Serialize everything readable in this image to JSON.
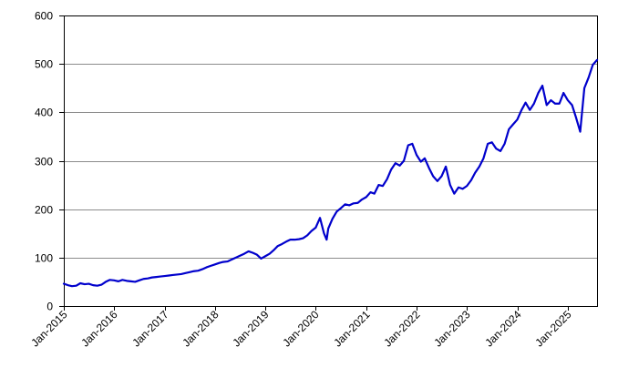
{
  "chart_data": {
    "type": "line",
    "title": "",
    "xlabel": "",
    "ylabel": "",
    "ylim": [
      0,
      600
    ],
    "xlim": [
      "2015-01-01",
      "2025-08-01"
    ],
    "y_ticks": [
      0,
      100,
      200,
      300,
      400,
      500,
      600
    ],
    "x_ticks": [
      {
        "label": "Jan-2015",
        "date": "2015-01-01"
      },
      {
        "label": "Jan-2016",
        "date": "2016-01-01"
      },
      {
        "label": "Jan-2017",
        "date": "2017-01-01"
      },
      {
        "label": "Jan-2018",
        "date": "2018-01-01"
      },
      {
        "label": "Jan-2019",
        "date": "2019-01-01"
      },
      {
        "label": "Jan-2020",
        "date": "2020-01-01"
      },
      {
        "label": "Jan-2021",
        "date": "2021-01-01"
      },
      {
        "label": "Jan-2022",
        "date": "2022-01-01"
      },
      {
        "label": "Jan-2023",
        "date": "2023-01-01"
      },
      {
        "label": "Jan-2024",
        "date": "2024-01-01"
      },
      {
        "label": "Jan-2025",
        "date": "2025-01-01"
      }
    ],
    "grid": {
      "horizontal": true,
      "vertical": false
    },
    "legend": "none",
    "series_color": "#0000cc",
    "gridline_color": "#8c8c8c",
    "series": [
      {
        "points": [
          [
            "2015-01-01",
            46
          ],
          [
            "2015-02-01",
            43
          ],
          [
            "2015-03-01",
            41
          ],
          [
            "2015-04-01",
            42
          ],
          [
            "2015-05-01",
            47
          ],
          [
            "2015-06-01",
            45
          ],
          [
            "2015-07-01",
            46
          ],
          [
            "2015-08-01",
            43
          ],
          [
            "2015-09-01",
            42
          ],
          [
            "2015-10-01",
            44
          ],
          [
            "2015-11-01",
            50
          ],
          [
            "2015-12-01",
            54
          ],
          [
            "2016-01-01",
            53
          ],
          [
            "2016-02-01",
            51
          ],
          [
            "2016-03-01",
            54
          ],
          [
            "2016-04-01",
            52
          ],
          [
            "2016-05-01",
            51
          ],
          [
            "2016-06-01",
            50
          ],
          [
            "2016-07-01",
            53
          ],
          [
            "2016-08-01",
            56
          ],
          [
            "2016-09-01",
            57
          ],
          [
            "2016-10-01",
            59
          ],
          [
            "2016-11-01",
            60
          ],
          [
            "2016-12-01",
            61
          ],
          [
            "2017-01-01",
            62
          ],
          [
            "2017-02-01",
            63
          ],
          [
            "2017-03-01",
            64
          ],
          [
            "2017-04-01",
            65
          ],
          [
            "2017-05-01",
            66
          ],
          [
            "2017-06-01",
            68
          ],
          [
            "2017-07-01",
            70
          ],
          [
            "2017-08-01",
            72
          ],
          [
            "2017-09-01",
            73
          ],
          [
            "2017-10-01",
            76
          ],
          [
            "2017-11-01",
            80
          ],
          [
            "2017-12-01",
            83
          ],
          [
            "2018-01-01",
            86
          ],
          [
            "2018-02-01",
            89
          ],
          [
            "2018-03-01",
            91
          ],
          [
            "2018-04-01",
            92
          ],
          [
            "2018-05-01",
            96
          ],
          [
            "2018-06-01",
            100
          ],
          [
            "2018-07-01",
            104
          ],
          [
            "2018-08-01",
            108
          ],
          [
            "2018-09-01",
            113
          ],
          [
            "2018-10-01",
            110
          ],
          [
            "2018-11-01",
            106
          ],
          [
            "2018-12-01",
            98
          ],
          [
            "2019-01-01",
            103
          ],
          [
            "2019-02-01",
            108
          ],
          [
            "2019-03-01",
            115
          ],
          [
            "2019-04-01",
            124
          ],
          [
            "2019-05-01",
            128
          ],
          [
            "2019-06-01",
            133
          ],
          [
            "2019-07-01",
            137
          ],
          [
            "2019-08-01",
            137
          ],
          [
            "2019-09-01",
            138
          ],
          [
            "2019-10-01",
            140
          ],
          [
            "2019-11-01",
            146
          ],
          [
            "2019-12-01",
            155
          ],
          [
            "2020-01-01",
            162
          ],
          [
            "2020-02-01",
            182
          ],
          [
            "2020-03-01",
            150
          ],
          [
            "2020-03-20",
            137
          ],
          [
            "2020-04-01",
            160
          ],
          [
            "2020-05-01",
            180
          ],
          [
            "2020-06-01",
            195
          ],
          [
            "2020-07-01",
            202
          ],
          [
            "2020-08-01",
            210
          ],
          [
            "2020-09-01",
            208
          ],
          [
            "2020-10-01",
            212
          ],
          [
            "2020-11-01",
            213
          ],
          [
            "2020-12-01",
            220
          ],
          [
            "2021-01-01",
            225
          ],
          [
            "2021-02-01",
            235
          ],
          [
            "2021-03-01",
            232
          ],
          [
            "2021-04-01",
            250
          ],
          [
            "2021-05-01",
            248
          ],
          [
            "2021-06-01",
            262
          ],
          [
            "2021-07-01",
            282
          ],
          [
            "2021-08-01",
            295
          ],
          [
            "2021-09-01",
            290
          ],
          [
            "2021-10-01",
            300
          ],
          [
            "2021-11-01",
            332
          ],
          [
            "2021-12-01",
            335
          ],
          [
            "2022-01-01",
            312
          ],
          [
            "2022-02-01",
            298
          ],
          [
            "2022-03-01",
            305
          ],
          [
            "2022-04-01",
            285
          ],
          [
            "2022-05-01",
            268
          ],
          [
            "2022-06-01",
            258
          ],
          [
            "2022-07-01",
            268
          ],
          [
            "2022-08-01",
            288
          ],
          [
            "2022-09-01",
            250
          ],
          [
            "2022-10-01",
            232
          ],
          [
            "2022-11-01",
            245
          ],
          [
            "2022-12-01",
            242
          ],
          [
            "2023-01-01",
            248
          ],
          [
            "2023-02-01",
            260
          ],
          [
            "2023-03-01",
            275
          ],
          [
            "2023-04-01",
            288
          ],
          [
            "2023-05-01",
            305
          ],
          [
            "2023-06-01",
            335
          ],
          [
            "2023-07-01",
            338
          ],
          [
            "2023-08-01",
            325
          ],
          [
            "2023-09-01",
            320
          ],
          [
            "2023-10-01",
            335
          ],
          [
            "2023-11-01",
            365
          ],
          [
            "2023-12-01",
            375
          ],
          [
            "2024-01-01",
            385
          ],
          [
            "2024-02-01",
            405
          ],
          [
            "2024-03-01",
            420
          ],
          [
            "2024-04-01",
            405
          ],
          [
            "2024-05-01",
            418
          ],
          [
            "2024-06-01",
            440
          ],
          [
            "2024-07-01",
            455
          ],
          [
            "2024-08-01",
            415
          ],
          [
            "2024-09-01",
            425
          ],
          [
            "2024-10-01",
            418
          ],
          [
            "2024-11-01",
            418
          ],
          [
            "2024-12-01",
            440
          ],
          [
            "2025-01-01",
            425
          ],
          [
            "2025-02-01",
            415
          ],
          [
            "2025-03-01",
            390
          ],
          [
            "2025-04-01",
            360
          ],
          [
            "2025-05-01",
            450
          ],
          [
            "2025-06-01",
            472
          ],
          [
            "2025-07-01",
            498
          ],
          [
            "2025-08-01",
            508
          ]
        ]
      }
    ]
  }
}
